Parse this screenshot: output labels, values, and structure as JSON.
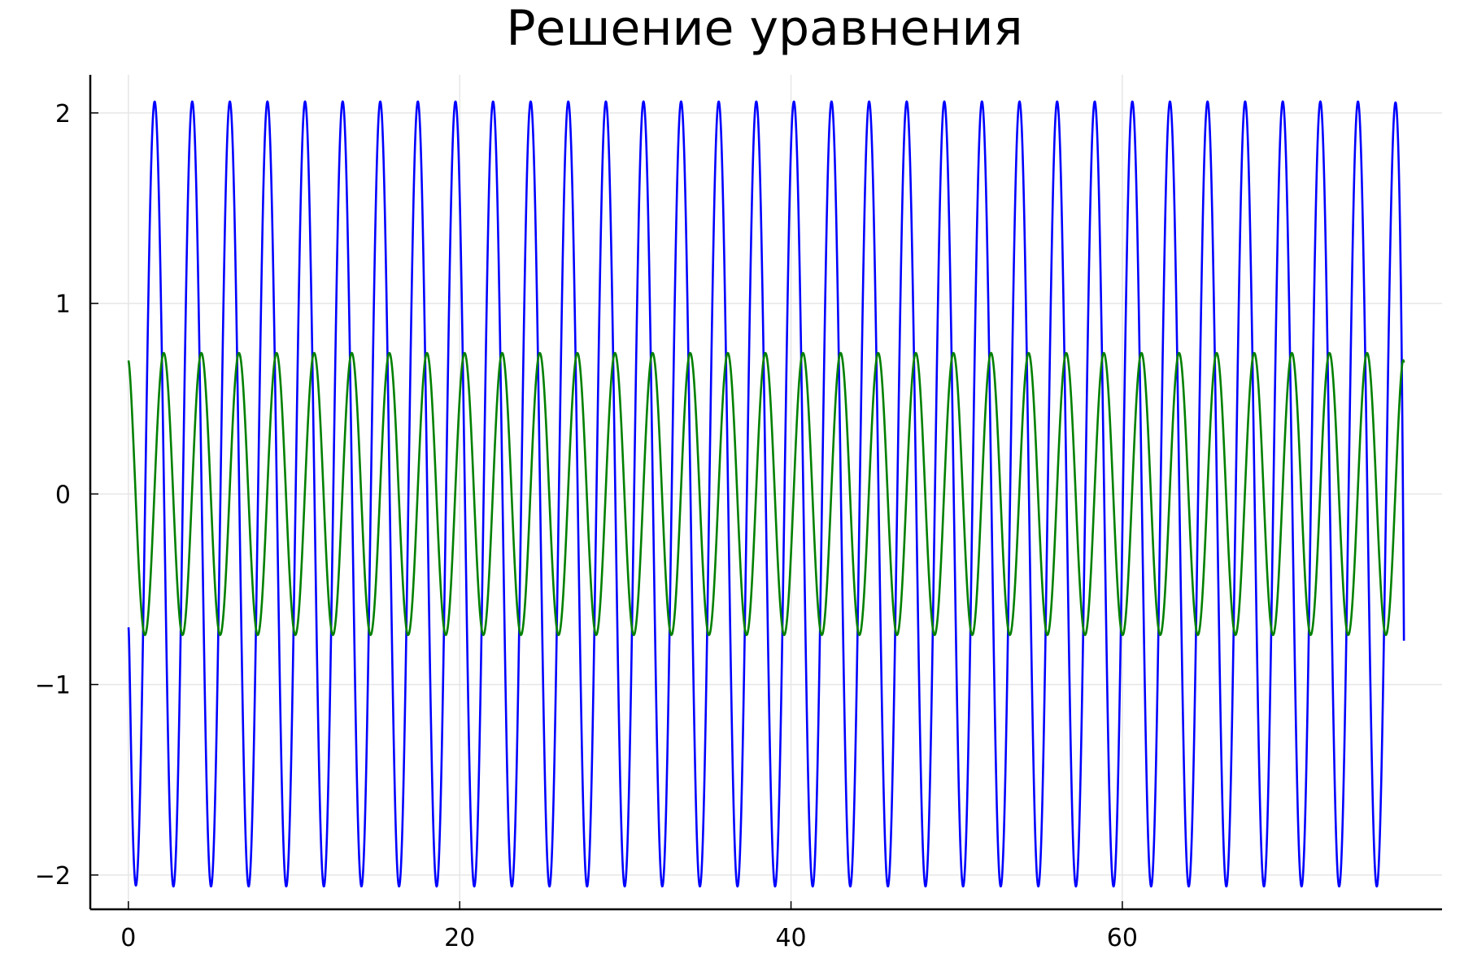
{
  "chart_data": {
    "type": "line",
    "title": "Решение уравнения",
    "xlabel": "",
    "ylabel": "",
    "xlim": [
      -2.3,
      79.3
    ],
    "ylim": [
      -2.18,
      2.2
    ],
    "grid": true,
    "legend": "none",
    "xticks": [
      0,
      20,
      40,
      60
    ],
    "xtick_labels": [
      "0",
      "20",
      "40",
      "60"
    ],
    "yticks": [
      -2,
      -1,
      0,
      1,
      2
    ],
    "ytick_labels": [
      "−2",
      "−1",
      "0",
      "1",
      "2"
    ],
    "x_range": [
      0,
      77
    ],
    "series": [
      {
        "color": "#0000ff",
        "description": "oscillation, amplitude ≈ 2.06, period ≈ 2.27, starts at −0.7, ends ≈ −0.77",
        "amplitude": 2.06,
        "period": 2.27,
        "start_value": -0.7,
        "end_value": -0.77,
        "first_min_x": 0.45,
        "max": 2.06,
        "min": -2.06
      },
      {
        "color": "#008000",
        "description": "oscillation, amplitude ≈ 0.74, period ≈ 2.27, starts at 0.7, ends ≈ 0.69",
        "amplitude": 0.74,
        "period": 2.27,
        "start_value": 0.7,
        "end_value": 0.69,
        "first_min_x": 1.0,
        "max": 0.74,
        "min": -0.74
      }
    ]
  }
}
